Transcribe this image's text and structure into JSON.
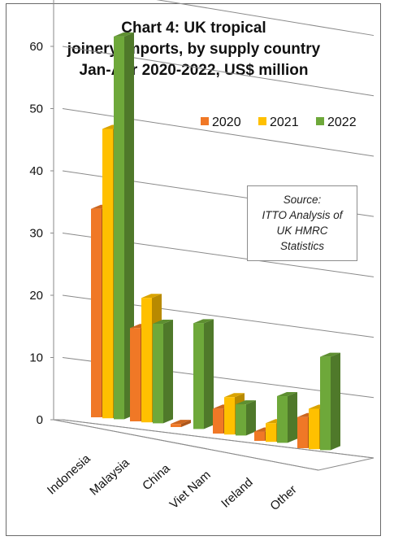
{
  "chart_data": {
    "type": "bar",
    "title_lines": [
      "Chart 4: UK tropical",
      "joinery imports, by supply country",
      "Jan-Apr 2020-2022, US$ million"
    ],
    "categories": [
      "Indonesia",
      "Malaysia",
      "China",
      "Viet Nam",
      "Ireland",
      "Other"
    ],
    "series": [
      {
        "name": "2020",
        "color": "#F07826",
        "values": [
          33.5,
          15.0,
          0.5,
          4.0,
          1.5,
          5.0
        ]
      },
      {
        "name": "2021",
        "color": "#FFC000",
        "values": [
          46.5,
          20.0,
          0.0,
          6.0,
          3.0,
          6.5
        ]
      },
      {
        "name": "2022",
        "color": "#6EA83A",
        "values": [
          61.5,
          16.0,
          17.0,
          5.0,
          7.5,
          15.0
        ]
      }
    ],
    "ylim": [
      0,
      70
    ],
    "yticks": [
      "0",
      "10",
      "20",
      "30",
      "40",
      "50",
      "60",
      "70"
    ],
    "grid": true,
    "legend_position": "top-right",
    "annotation": [
      "Source:",
      "ITTO Analysis of",
      "UK HMRC",
      "Statistics"
    ]
  }
}
